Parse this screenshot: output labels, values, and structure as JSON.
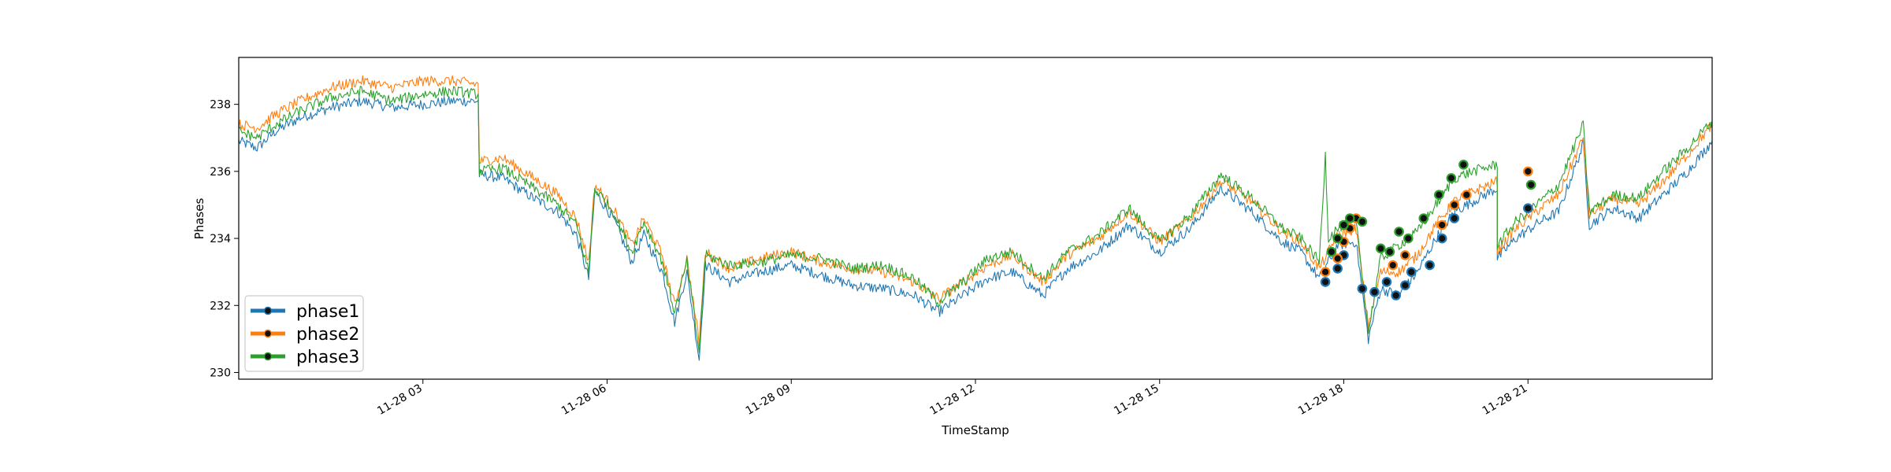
{
  "chart_data": {
    "type": "line",
    "title": "",
    "xlabel": "TimeStamp",
    "ylabel": "Phases",
    "ylim": [
      229.8,
      239.4
    ],
    "y_ticks": [
      230,
      232,
      234,
      236,
      238
    ],
    "x_range_hours": [
      0.0,
      24.0
    ],
    "x_ticks": [
      {
        "hour": 3,
        "label": "11-28 03"
      },
      {
        "hour": 6,
        "label": "11-28 06"
      },
      {
        "hour": 9,
        "label": "11-28 09"
      },
      {
        "hour": 12,
        "label": "11-28 12"
      },
      {
        "hour": 15,
        "label": "11-28 15"
      },
      {
        "hour": 18,
        "label": "11-28 18"
      },
      {
        "hour": 21,
        "label": "11-28 21"
      }
    ],
    "legend_position": "lower-left",
    "series": [
      {
        "name": "phase1",
        "color": "#1f77b4",
        "points": [
          [
            0.0,
            236.9
          ],
          [
            0.3,
            236.7
          ],
          [
            0.6,
            237.2
          ],
          [
            1.0,
            237.6
          ],
          [
            1.5,
            237.9
          ],
          [
            2.0,
            238.1
          ],
          [
            2.5,
            237.9
          ],
          [
            3.0,
            238.0
          ],
          [
            3.5,
            238.1
          ],
          [
            3.9,
            238.1
          ],
          [
            3.92,
            235.9
          ],
          [
            4.3,
            235.8
          ],
          [
            4.8,
            235.2
          ],
          [
            5.2,
            234.8
          ],
          [
            5.5,
            234.1
          ],
          [
            5.7,
            232.8
          ],
          [
            5.8,
            235.4
          ],
          [
            6.1,
            234.6
          ],
          [
            6.4,
            233.3
          ],
          [
            6.6,
            234.1
          ],
          [
            6.9,
            233.0
          ],
          [
            7.1,
            231.5
          ],
          [
            7.3,
            233.0
          ],
          [
            7.5,
            230.4
          ],
          [
            7.6,
            233.2
          ],
          [
            8.0,
            232.7
          ],
          [
            8.5,
            233.0
          ],
          [
            9.0,
            233.2
          ],
          [
            9.5,
            232.9
          ],
          [
            10.0,
            232.6
          ],
          [
            10.5,
            232.5
          ],
          [
            11.0,
            232.3
          ],
          [
            11.4,
            231.8
          ],
          [
            11.8,
            232.3
          ],
          [
            12.2,
            232.8
          ],
          [
            12.6,
            233.0
          ],
          [
            13.1,
            232.3
          ],
          [
            13.5,
            233.1
          ],
          [
            14.0,
            233.6
          ],
          [
            14.5,
            234.4
          ],
          [
            15.0,
            233.6
          ],
          [
            15.5,
            234.3
          ],
          [
            16.0,
            235.5
          ],
          [
            16.5,
            234.8
          ],
          [
            17.0,
            233.9
          ],
          [
            17.3,
            233.6
          ],
          [
            17.6,
            232.8
          ],
          [
            17.9,
            233.8
          ],
          [
            18.2,
            233.9
          ],
          [
            18.4,
            231.0
          ],
          [
            18.6,
            232.5
          ],
          [
            18.9,
            232.3
          ],
          [
            19.2,
            233.0
          ],
          [
            19.5,
            234.0
          ],
          [
            19.8,
            234.8
          ],
          [
            20.1,
            235.1
          ],
          [
            20.5,
            235.5
          ],
          [
            20.5,
            233.4
          ],
          [
            20.8,
            234.0
          ],
          [
            21.2,
            234.5
          ],
          [
            21.5,
            234.8
          ],
          [
            21.9,
            236.8
          ],
          [
            22.0,
            234.4
          ],
          [
            22.4,
            234.9
          ],
          [
            22.8,
            234.6
          ],
          [
            23.2,
            235.3
          ],
          [
            23.6,
            236.0
          ],
          [
            24.0,
            236.9
          ]
        ],
        "markers": [
          [
            17.7,
            232.7
          ],
          [
            17.9,
            233.1
          ],
          [
            18.0,
            233.5
          ],
          [
            18.3,
            232.5
          ],
          [
            18.5,
            232.4
          ],
          [
            18.7,
            232.7
          ],
          [
            18.85,
            232.3
          ],
          [
            19.0,
            232.6
          ],
          [
            19.1,
            233.0
          ],
          [
            19.4,
            233.2
          ],
          [
            19.6,
            234.0
          ],
          [
            19.8,
            234.6
          ],
          [
            21.0,
            234.9
          ]
        ]
      },
      {
        "name": "phase2",
        "color": "#ff7f0e",
        "points": [
          [
            0.0,
            237.4
          ],
          [
            0.3,
            237.3
          ],
          [
            0.6,
            237.7
          ],
          [
            1.0,
            238.1
          ],
          [
            1.5,
            238.5
          ],
          [
            2.0,
            238.7
          ],
          [
            2.5,
            238.5
          ],
          [
            3.0,
            238.7
          ],
          [
            3.5,
            238.7
          ],
          [
            3.9,
            238.6
          ],
          [
            3.92,
            236.3
          ],
          [
            4.3,
            236.4
          ],
          [
            4.8,
            235.8
          ],
          [
            5.2,
            235.3
          ],
          [
            5.5,
            234.6
          ],
          [
            5.7,
            233.3
          ],
          [
            5.8,
            235.6
          ],
          [
            6.1,
            234.9
          ],
          [
            6.4,
            233.8
          ],
          [
            6.6,
            234.6
          ],
          [
            6.9,
            233.5
          ],
          [
            7.1,
            232.0
          ],
          [
            7.3,
            233.4
          ],
          [
            7.5,
            230.9
          ],
          [
            7.6,
            233.6
          ],
          [
            8.0,
            233.1
          ],
          [
            8.5,
            233.4
          ],
          [
            9.0,
            233.6
          ],
          [
            9.5,
            233.3
          ],
          [
            10.0,
            233.1
          ],
          [
            10.5,
            233.0
          ],
          [
            11.0,
            232.7
          ],
          [
            11.4,
            232.2
          ],
          [
            11.8,
            232.7
          ],
          [
            12.2,
            233.2
          ],
          [
            12.6,
            233.5
          ],
          [
            13.1,
            232.7
          ],
          [
            13.5,
            233.5
          ],
          [
            14.0,
            234.0
          ],
          [
            14.5,
            234.8
          ],
          [
            15.0,
            233.9
          ],
          [
            15.5,
            234.6
          ],
          [
            16.0,
            235.7
          ],
          [
            16.5,
            235.1
          ],
          [
            17.0,
            234.2
          ],
          [
            17.3,
            233.9
          ],
          [
            17.6,
            233.1
          ],
          [
            17.9,
            234.1
          ],
          [
            18.2,
            234.3
          ],
          [
            18.4,
            231.4
          ],
          [
            18.6,
            233.0
          ],
          [
            18.9,
            233.0
          ],
          [
            19.2,
            233.5
          ],
          [
            19.5,
            234.4
          ],
          [
            19.8,
            235.1
          ],
          [
            20.1,
            235.4
          ],
          [
            20.5,
            235.7
          ],
          [
            20.5,
            233.6
          ],
          [
            20.8,
            234.3
          ],
          [
            21.2,
            234.9
          ],
          [
            21.5,
            235.3
          ],
          [
            21.9,
            237.0
          ],
          [
            22.0,
            234.7
          ],
          [
            22.4,
            235.2
          ],
          [
            22.8,
            235.0
          ],
          [
            23.2,
            235.7
          ],
          [
            23.6,
            236.5
          ],
          [
            24.0,
            237.4
          ]
        ],
        "markers": [
          [
            17.7,
            233.0
          ],
          [
            17.9,
            233.4
          ],
          [
            18.0,
            233.9
          ],
          [
            18.1,
            234.3
          ],
          [
            18.2,
            234.6
          ],
          [
            18.8,
            233.2
          ],
          [
            19.0,
            233.5
          ],
          [
            19.6,
            234.4
          ],
          [
            19.8,
            235.0
          ],
          [
            20.0,
            235.3
          ],
          [
            21.0,
            236.0
          ]
        ]
      },
      {
        "name": "phase3",
        "color": "#2ca02c",
        "points": [
          [
            0.0,
            237.2
          ],
          [
            0.3,
            237.0
          ],
          [
            0.6,
            237.4
          ],
          [
            1.0,
            237.8
          ],
          [
            1.5,
            238.2
          ],
          [
            2.0,
            238.4
          ],
          [
            2.5,
            238.1
          ],
          [
            3.0,
            238.3
          ],
          [
            3.5,
            238.4
          ],
          [
            3.9,
            238.3
          ],
          [
            3.92,
            236.0
          ],
          [
            4.3,
            236.1
          ],
          [
            4.8,
            235.5
          ],
          [
            5.2,
            235.0
          ],
          [
            5.5,
            234.4
          ],
          [
            5.7,
            233.0
          ],
          [
            5.8,
            235.5
          ],
          [
            6.1,
            234.8
          ],
          [
            6.4,
            233.6
          ],
          [
            6.6,
            234.5
          ],
          [
            6.9,
            233.3
          ],
          [
            7.1,
            231.8
          ],
          [
            7.3,
            233.3
          ],
          [
            7.5,
            230.6
          ],
          [
            7.6,
            233.5
          ],
          [
            8.0,
            233.2
          ],
          [
            8.5,
            233.3
          ],
          [
            9.0,
            233.5
          ],
          [
            9.5,
            233.4
          ],
          [
            10.0,
            233.1
          ],
          [
            10.5,
            233.2
          ],
          [
            11.0,
            232.8
          ],
          [
            11.4,
            232.1
          ],
          [
            11.8,
            232.7
          ],
          [
            12.2,
            233.4
          ],
          [
            12.6,
            233.6
          ],
          [
            13.1,
            232.8
          ],
          [
            13.5,
            233.6
          ],
          [
            14.0,
            234.1
          ],
          [
            14.5,
            234.9
          ],
          [
            15.0,
            233.9
          ],
          [
            15.5,
            234.7
          ],
          [
            16.0,
            235.9
          ],
          [
            16.5,
            235.2
          ],
          [
            17.0,
            234.3
          ],
          [
            17.3,
            234.0
          ],
          [
            17.6,
            233.3
          ],
          [
            17.7,
            236.5
          ],
          [
            17.75,
            234.0
          ],
          [
            17.9,
            234.3
          ],
          [
            18.2,
            234.6
          ],
          [
            18.4,
            231.2
          ],
          [
            18.6,
            233.4
          ],
          [
            18.9,
            233.8
          ],
          [
            19.2,
            234.2
          ],
          [
            19.5,
            235.0
          ],
          [
            19.8,
            235.8
          ],
          [
            20.1,
            236.0
          ],
          [
            20.5,
            236.2
          ],
          [
            20.5,
            233.8
          ],
          [
            20.8,
            234.5
          ],
          [
            21.2,
            235.1
          ],
          [
            21.5,
            235.6
          ],
          [
            21.9,
            237.4
          ],
          [
            22.0,
            234.8
          ],
          [
            22.4,
            235.3
          ],
          [
            22.8,
            235.2
          ],
          [
            23.2,
            236.0
          ],
          [
            23.6,
            236.7
          ],
          [
            24.0,
            237.5
          ]
        ],
        "markers": [
          [
            17.8,
            233.6
          ],
          [
            17.9,
            234.0
          ],
          [
            18.0,
            234.4
          ],
          [
            18.1,
            234.6
          ],
          [
            18.3,
            234.5
          ],
          [
            18.6,
            233.7
          ],
          [
            18.75,
            233.6
          ],
          [
            18.9,
            234.2
          ],
          [
            19.05,
            234.0
          ],
          [
            19.3,
            234.6
          ],
          [
            19.55,
            235.3
          ],
          [
            19.75,
            235.8
          ],
          [
            19.95,
            236.2
          ],
          [
            21.05,
            235.6
          ]
        ]
      }
    ]
  }
}
